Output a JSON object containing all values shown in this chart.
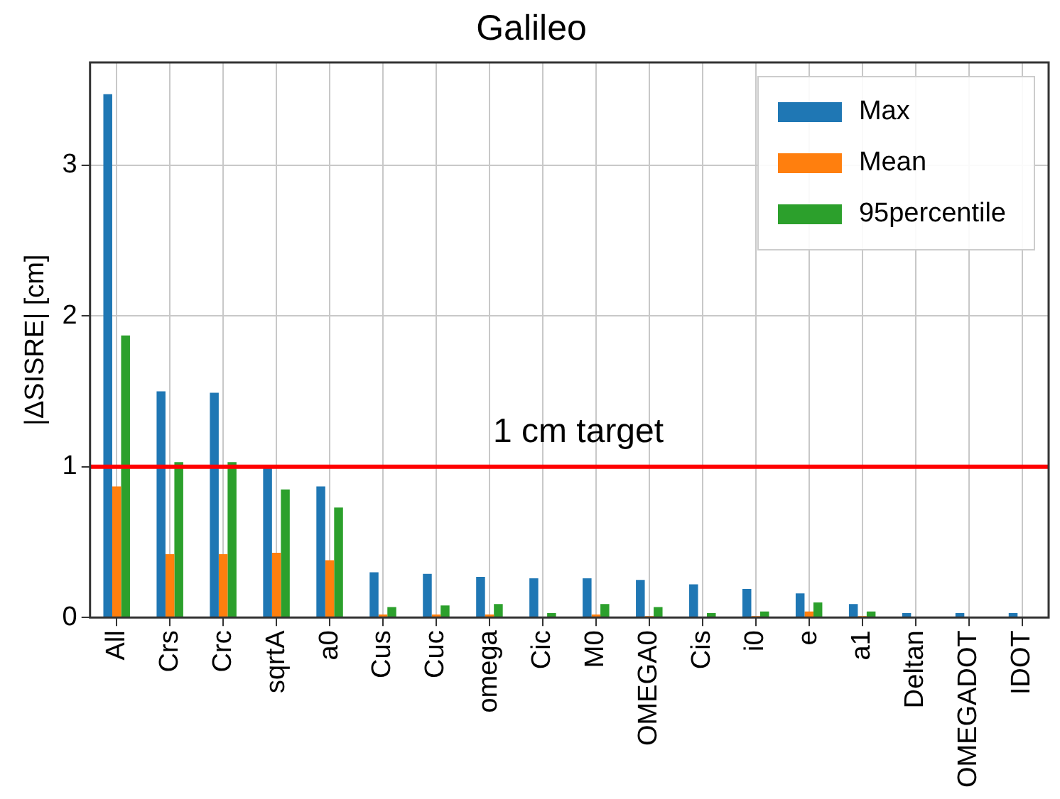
{
  "chart_data": {
    "type": "bar",
    "title": "Galileo",
    "ylabel": "|ΔSISRE| [cm]",
    "categories": [
      "All",
      "Crs",
      "Crc",
      "sqrtA",
      "a0",
      "Cus",
      "Cuc",
      "omega",
      "Cic",
      "M0",
      "OMEGA0",
      "Cis",
      "i0",
      "e",
      "a1",
      "Deltan",
      "OMEGADOT",
      "IDOT"
    ],
    "series": [
      {
        "name": "Max",
        "color": "#1f77b4",
        "values": [
          3.47,
          1.5,
          1.49,
          0.99,
          0.87,
          0.3,
          0.29,
          0.27,
          0.26,
          0.26,
          0.25,
          0.22,
          0.19,
          0.16,
          0.09,
          0.03,
          0.03,
          0.03
        ]
      },
      {
        "name": "Mean",
        "color": "#ff7f0e",
        "values": [
          0.87,
          0.42,
          0.42,
          0.43,
          0.38,
          0.02,
          0.02,
          0.02,
          0,
          0.02,
          0.01,
          0,
          0.01,
          0.04,
          0.01,
          0,
          0,
          0
        ]
      },
      {
        "name": "95percentile",
        "color": "#2ca02c",
        "values": [
          1.87,
          1.03,
          1.03,
          0.85,
          0.73,
          0.07,
          0.08,
          0.09,
          0.03,
          0.09,
          0.07,
          0.03,
          0.04,
          0.1,
          0.04,
          0,
          0,
          0
        ]
      }
    ],
    "ylim": [
      0,
      3.68
    ],
    "yticks": [
      0,
      1,
      2,
      3
    ],
    "grid": true,
    "legend": "top right",
    "ref_lines": [
      {
        "axis": "y",
        "value": 1,
        "label": "1 cm target",
        "color": "#ff0000"
      }
    ]
  }
}
